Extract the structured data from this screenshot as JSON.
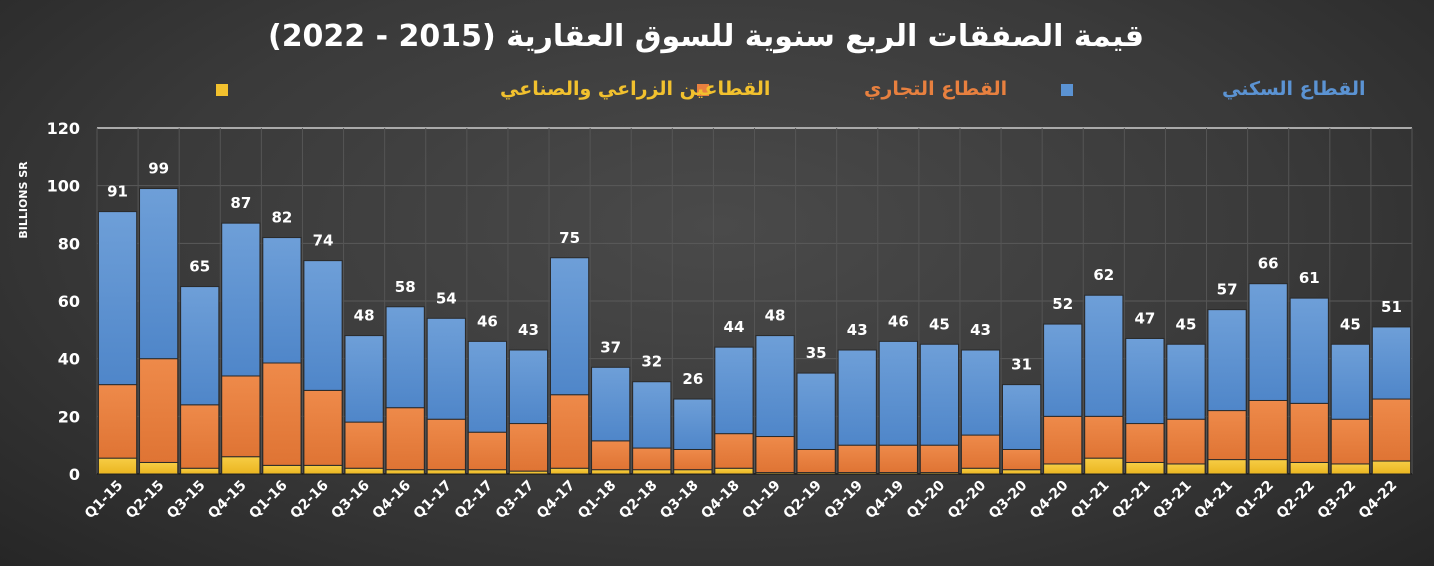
{
  "chart_data": {
    "type": "bar",
    "stacked": true,
    "title": "قيمة الصفقات الربع سنوية للسوق العقارية (2015 - 2022)",
    "xlabel": "",
    "ylabel": "BILLIONS SR",
    "ylim": [
      0,
      120
    ],
    "yticks": [
      0,
      20,
      40,
      60,
      80,
      100,
      120
    ],
    "grid": true,
    "legend_position": "top",
    "categories": [
      "Q1-15",
      "Q2-15",
      "Q3-15",
      "Q4-15",
      "Q1-16",
      "Q2-16",
      "Q3-16",
      "Q4-16",
      "Q1-17",
      "Q2-17",
      "Q3-17",
      "Q4-17",
      "Q1-18",
      "Q2-18",
      "Q3-18",
      "Q4-18",
      "Q1-19",
      "Q2-19",
      "Q3-19",
      "Q4-19",
      "Q1-20",
      "Q2-20",
      "Q3-20",
      "Q4-20",
      "Q1-21",
      "Q2-21",
      "Q3-21",
      "Q4-21",
      "Q1-22",
      "Q2-22",
      "Q3-22",
      "Q4-22"
    ],
    "totals": [
      91,
      99,
      65,
      87,
      82,
      74,
      48,
      58,
      54,
      46,
      43,
      75,
      37,
      32,
      26,
      44,
      48,
      35,
      43,
      46,
      45,
      43,
      31,
      52,
      62,
      47,
      45,
      57,
      66,
      61,
      45,
      51
    ],
    "series": [
      {
        "name": "القطاعين الزراعي والصناعي",
        "color": "#f2c12e",
        "values": [
          5.5,
          4,
          2,
          6,
          3,
          3,
          2,
          1.5,
          1.5,
          1.5,
          1,
          2,
          1.5,
          1.5,
          1.5,
          2,
          0.5,
          0.5,
          0.5,
          0.5,
          0.5,
          2,
          1.5,
          3.5,
          5.5,
          4,
          3.5,
          5,
          5,
          4,
          3.5,
          4.5
        ]
      },
      {
        "name": "القطاع التجاري",
        "color": "#e8803f",
        "values": [
          25.5,
          36,
          22,
          28,
          35.5,
          26,
          16,
          21.5,
          17.5,
          13,
          16.5,
          25.5,
          10,
          7.5,
          7,
          12,
          12.5,
          8,
          9.5,
          9.5,
          9.5,
          11.5,
          7,
          16.5,
          14.5,
          13.5,
          15.5,
          17,
          20.5,
          20.5,
          15.5,
          21.5
        ]
      },
      {
        "name": "القطاع السكني",
        "color": "#5b93d3",
        "values": [
          60,
          59,
          41,
          53,
          43.5,
          45,
          30,
          35,
          35,
          31.5,
          25.5,
          47.5,
          25.5,
          23,
          17.5,
          30,
          35,
          26.5,
          33,
          36,
          35,
          29.5,
          22.5,
          32,
          42,
          29.5,
          26,
          35,
          40.5,
          36.5,
          26,
          25
        ]
      }
    ]
  }
}
